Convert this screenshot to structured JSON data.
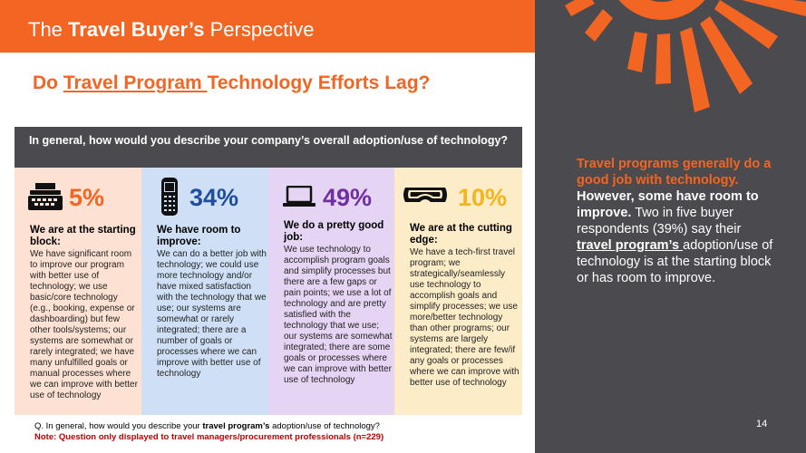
{
  "header": {
    "title_pre": "The ",
    "title_bold": "Travel Buyer’s",
    "title_post": " Perspective"
  },
  "question": {
    "pre": "Do ",
    "underlined": "Travel Program ",
    "post": "Technology Efforts Lag?"
  },
  "survey_question": "In general, how would you describe your company’s overall adoption/use of technology?",
  "columns": [
    {
      "percent": "5%",
      "title": "We are at the starting block:",
      "description": "We have significant room to improve our program with better use of technology; we use basic/core technology (e.g., booking, expense or dashboarding) but few other tools/systems; our systems are somewhat or rarely integrated; we have many unfulfilled goals or manual processes where we can improve with better use of technology",
      "icon": "typewriter-icon",
      "bg": "#fde2d3",
      "color": "#f26522"
    },
    {
      "percent": "34%",
      "title": "We have room to improve:",
      "description": "We can do a better job with technology; we could use more technology and/or have mixed satisfaction with the technology that we use; our systems are somewhat or rarely integrated; there are a number of goals or processes where we can improve with better use of technology",
      "icon": "mobile-phone-icon",
      "bg": "#cfe0f6",
      "color": "#1f4e9c"
    },
    {
      "percent": "49%",
      "title": "We do a pretty good job:",
      "description": "We use technology to accomplish program goals and simplify processes but there are a few gaps or pain points; we use a lot of technology and are pretty satisfied with the technology that we use; our systems are somewhat integrated; there are some goals or processes where we can improve with better use of technology",
      "icon": "laptop-icon",
      "bg": "#e5d4f3",
      "color": "#7030a0"
    },
    {
      "percent": "10%",
      "title": "We are at the cutting edge:",
      "description": "We have a tech-first travel program; we strategically/seamlessly use technology to accomplish goals and simplify processes; we use more/better technology than other programs; our systems are largely integrated; there are few/if any goals or processes where we can improve with better use of technology",
      "icon": "vr-headset-icon",
      "bg": "#fcecc8",
      "color": "#f5b41a"
    }
  ],
  "footnote": {
    "q_pre": "Q. In general, how would you describe your ",
    "q_bold": "travel program’s",
    "q_post": " adoption/use of technology?",
    "note": "Note: Question only displayed to travel managers/procurement professionals (n=229)"
  },
  "side": {
    "orange": "Travel programs generally do a good job with technology.",
    "bold": "However, some have room to improve.",
    "text1": " Two in five buyer respondents (39%)  say their ",
    "underlined": "travel program’s ",
    "text2": "adoption/use of technology is at the starting block or has room to improve."
  },
  "page_number": "14"
}
